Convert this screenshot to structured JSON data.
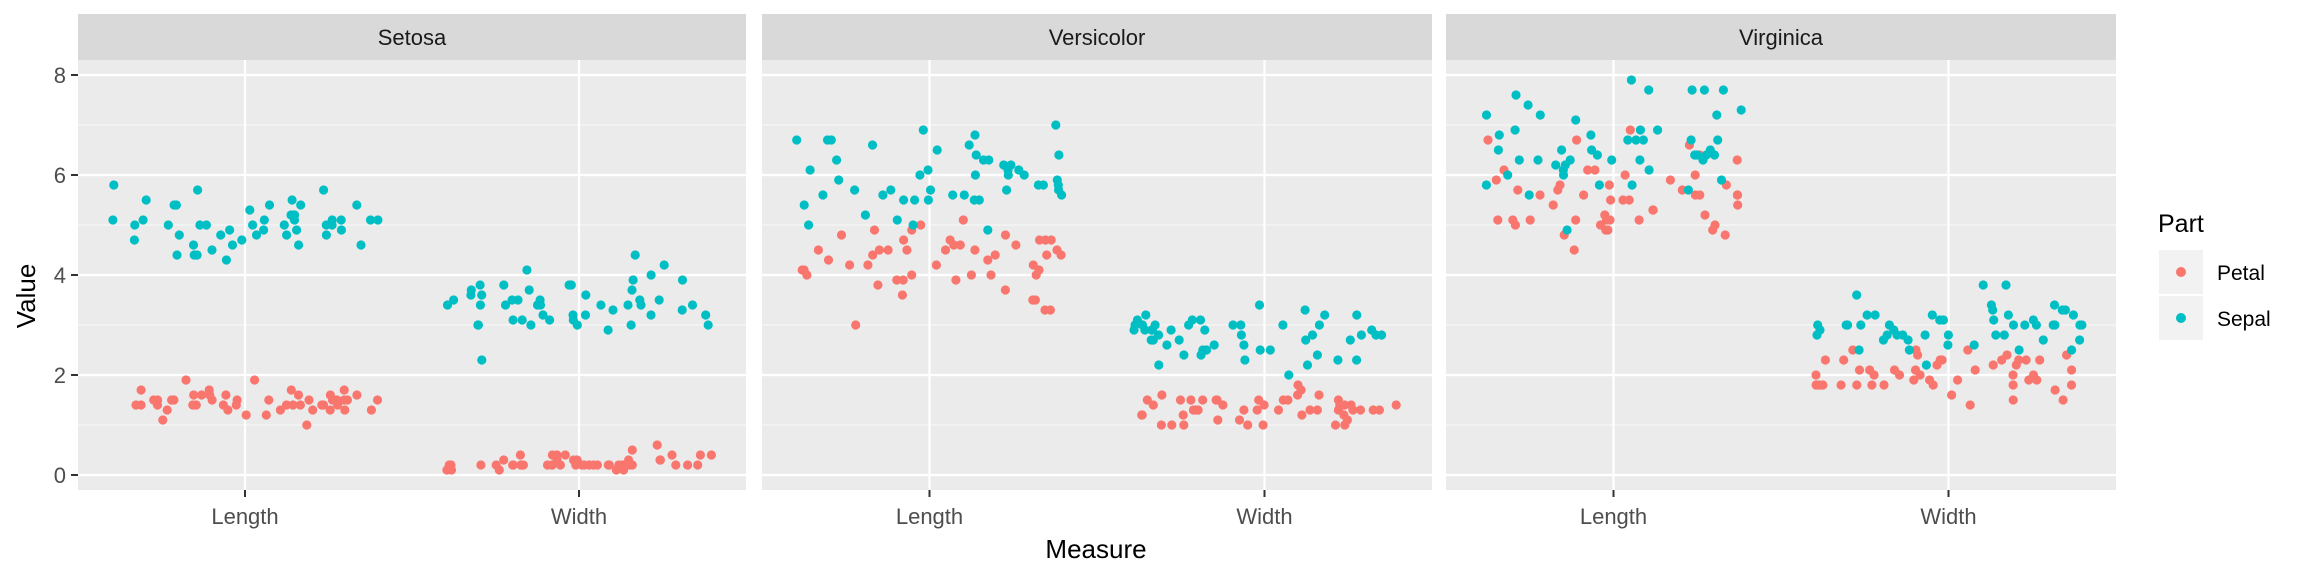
{
  "chart_data": {
    "type": "scatter",
    "facets": [
      "Setosa",
      "Versicolor",
      "Virginica"
    ],
    "categories": [
      "Length",
      "Width"
    ],
    "xlabel": "Measure",
    "ylabel": "Value",
    "ylim": [
      -0.3,
      8.3
    ],
    "yticks": [
      0,
      2,
      4,
      6,
      8
    ],
    "jitter": "horizontal",
    "grid": true,
    "legend": {
      "title": "Part",
      "position": "right",
      "entries": [
        {
          "name": "Petal",
          "color": "#F8766D"
        },
        {
          "name": "Sepal",
          "color": "#00BFC4"
        }
      ]
    },
    "series": [
      {
        "name": "Petal",
        "color": "#F8766D",
        "points": {
          "Setosa": {
            "Length": [
              1.4,
              1.4,
              1.3,
              1.5,
              1.4,
              1.7,
              1.4,
              1.5,
              1.4,
              1.5,
              1.5,
              1.6,
              1.4,
              1.1,
              1.2,
              1.5,
              1.3,
              1.4,
              1.7,
              1.5,
              1.7,
              1.5,
              1.0,
              1.7,
              1.9,
              1.6,
              1.6,
              1.5,
              1.4,
              1.6,
              1.6,
              1.5,
              1.5,
              1.4,
              1.5,
              1.2,
              1.3,
              1.4,
              1.3,
              1.5,
              1.3,
              1.3,
              1.3,
              1.6,
              1.9,
              1.4,
              1.6,
              1.4,
              1.5,
              1.4
            ],
            "Width": [
              0.2,
              0.2,
              0.2,
              0.2,
              0.2,
              0.4,
              0.3,
              0.2,
              0.2,
              0.1,
              0.2,
              0.2,
              0.1,
              0.1,
              0.2,
              0.4,
              0.4,
              0.3,
              0.3,
              0.3,
              0.2,
              0.4,
              0.2,
              0.5,
              0.2,
              0.2,
              0.4,
              0.2,
              0.2,
              0.2,
              0.2,
              0.4,
              0.1,
              0.2,
              0.2,
              0.2,
              0.2,
              0.1,
              0.2,
              0.2,
              0.3,
              0.3,
              0.2,
              0.6,
              0.4,
              0.3,
              0.2,
              0.2,
              0.2,
              0.2
            ]
          },
          "Versicolor": {
            "Length": [
              4.7,
              4.5,
              4.9,
              4.0,
              4.6,
              4.5,
              4.7,
              3.3,
              4.6,
              3.9,
              3.5,
              4.2,
              4.0,
              4.7,
              3.6,
              4.4,
              4.5,
              4.1,
              4.5,
              3.9,
              4.8,
              4.0,
              4.9,
              4.7,
              4.3,
              4.4,
              4.8,
              5.0,
              4.5,
              3.5,
              3.8,
              3.7,
              3.9,
              5.1,
              4.5,
              4.5,
              4.7,
              4.4,
              4.1,
              4.0,
              4.4,
              4.6,
              4.0,
              3.3,
              4.2,
              4.2,
              4.2,
              4.3,
              3.0,
              4.1
            ],
            "Width": [
              1.4,
              1.5,
              1.5,
              1.3,
              1.5,
              1.3,
              1.6,
              1.0,
              1.3,
              1.4,
              1.0,
              1.5,
              1.0,
              1.4,
              1.3,
              1.4,
              1.5,
              1.0,
              1.5,
              1.1,
              1.8,
              1.3,
              1.5,
              1.2,
              1.3,
              1.4,
              1.4,
              1.7,
              1.5,
              1.0,
              1.1,
              1.0,
              1.2,
              1.6,
              1.5,
              1.6,
              1.5,
              1.3,
              1.3,
              1.3,
              1.2,
              1.4,
              1.2,
              1.0,
              1.3,
              1.2,
              1.3,
              1.3,
              1.1,
              1.3
            ]
          },
          "Virginica": {
            "Length": [
              6.0,
              5.1,
              5.9,
              5.6,
              5.8,
              6.6,
              4.5,
              6.3,
              5.8,
              6.1,
              5.1,
              5.3,
              5.5,
              5.0,
              5.1,
              5.3,
              5.5,
              6.7,
              6.9,
              5.0,
              5.7,
              4.9,
              6.7,
              4.9,
              5.7,
              6.0,
              4.8,
              4.9,
              5.6,
              5.8,
              6.1,
              6.4,
              5.6,
              5.1,
              5.6,
              6.1,
              5.6,
              5.5,
              4.8,
              5.4,
              5.6,
              5.1,
              5.1,
              5.9,
              5.7,
              5.2,
              5.0,
              5.2,
              5.4,
              5.1
            ],
            "Width": [
              2.5,
              1.9,
              2.1,
              1.8,
              2.2,
              2.1,
              1.7,
              1.8,
              1.8,
              2.5,
              2.0,
              1.9,
              2.1,
              2.0,
              2.4,
              2.3,
              1.8,
              2.2,
              2.3,
              1.5,
              2.3,
              2.0,
              2.0,
              1.8,
              2.1,
              1.8,
              1.8,
              1.8,
              2.1,
              1.6,
              1.9,
              2.0,
              2.2,
              1.5,
              1.4,
              2.3,
              2.4,
              1.8,
              1.8,
              2.1,
              2.4,
              2.3,
              1.9,
              2.3,
              2.5,
              2.3,
              1.9,
              2.0,
              2.3,
              1.8
            ]
          }
        }
      },
      {
        "name": "Sepal",
        "color": "#00BFC4",
        "points": {
          "Setosa": {
            "Length": [
              5.1,
              4.9,
              4.7,
              4.6,
              5.0,
              5.4,
              4.6,
              5.0,
              4.4,
              4.9,
              5.4,
              4.8,
              4.8,
              4.3,
              5.8,
              5.7,
              5.4,
              5.1,
              5.7,
              5.1,
              5.4,
              5.1,
              4.6,
              5.1,
              4.8,
              5.0,
              5.0,
              5.2,
              5.2,
              4.7,
              4.8,
              5.4,
              5.2,
              5.5,
              4.9,
              5.0,
              5.5,
              4.9,
              4.4,
              5.1,
              5.0,
              4.5,
              4.4,
              5.0,
              5.1,
              4.8,
              5.1,
              4.6,
              5.3,
              5.0
            ],
            "Width": [
              3.5,
              3.0,
              3.2,
              3.1,
              3.6,
              3.9,
              3.4,
              3.4,
              2.9,
              3.1,
              3.7,
              3.4,
              3.0,
              3.0,
              4.0,
              4.4,
              3.9,
              3.5,
              3.8,
              3.8,
              3.4,
              3.7,
              3.6,
              3.3,
              3.4,
              3.0,
              3.4,
              3.5,
              3.4,
              3.2,
              3.1,
              3.4,
              4.1,
              4.2,
              3.1,
              3.2,
              3.5,
              3.6,
              3.0,
              3.4,
              3.5,
              2.3,
              3.2,
              3.5,
              3.8,
              3.0,
              3.8,
              3.2,
              3.7,
              3.3
            ]
          },
          "Versicolor": {
            "Length": [
              7.0,
              6.4,
              6.9,
              5.5,
              6.5,
              5.7,
              6.3,
              4.9,
              6.6,
              5.2,
              5.0,
              5.9,
              6.0,
              6.1,
              5.6,
              6.7,
              5.6,
              5.8,
              6.2,
              5.6,
              5.9,
              6.1,
              6.3,
              6.1,
              6.4,
              6.6,
              6.8,
              6.7,
              6.0,
              5.7,
              5.5,
              5.5,
              5.8,
              6.0,
              5.4,
              6.0,
              6.7,
              6.3,
              5.6,
              5.5,
              5.5,
              6.1,
              5.8,
              5.0,
              5.6,
              5.7,
              5.7,
              6.2,
              5.1,
              5.7
            ],
            "Width": [
              3.2,
              3.2,
              3.1,
              2.3,
              2.8,
              2.8,
              3.3,
              2.4,
              2.9,
              2.7,
              2.0,
              3.0,
              2.2,
              2.9,
              2.9,
              3.1,
              3.0,
              2.7,
              2.2,
              2.5,
              3.2,
              2.8,
              2.5,
              2.8,
              2.9,
              3.0,
              2.8,
              3.0,
              2.9,
              2.6,
              2.4,
              2.4,
              2.7,
              2.7,
              3.0,
              3.4,
              3.1,
              2.3,
              3.0,
              2.5,
              2.6,
              3.0,
              2.6,
              2.3,
              2.7,
              3.0,
              2.9,
              2.9,
              2.5,
              2.8
            ]
          },
          "Virginica": {
            "Length": [
              6.3,
              5.8,
              7.1,
              6.3,
              6.5,
              7.6,
              4.9,
              7.3,
              6.7,
              7.2,
              6.5,
              6.4,
              6.8,
              5.7,
              5.8,
              6.4,
              6.5,
              7.7,
              7.7,
              6.0,
              6.9,
              5.6,
              7.7,
              6.3,
              6.7,
              7.2,
              6.2,
              6.1,
              6.4,
              7.2,
              7.4,
              7.9,
              6.4,
              6.3,
              6.1,
              7.7,
              6.3,
              6.4,
              6.0,
              6.9,
              6.7,
              6.9,
              5.8,
              6.8,
              6.7,
              6.7,
              6.3,
              6.5,
              6.2,
              5.9
            ],
            "Width": [
              3.3,
              2.7,
              3.0,
              2.9,
              3.0,
              3.0,
              2.5,
              2.9,
              2.5,
              3.6,
              3.2,
              2.7,
              3.0,
              2.5,
              2.8,
              3.2,
              3.0,
              3.8,
              2.6,
              2.2,
              3.2,
              2.8,
              2.8,
              2.7,
              3.3,
              3.2,
              2.8,
              3.0,
              2.8,
              3.0,
              2.8,
              3.8,
              2.8,
              2.8,
              2.6,
              3.0,
              3.4,
              3.1,
              3.0,
              3.1,
              3.1,
              3.1,
              2.7,
              3.2,
              3.3,
              3.0,
              2.5,
              3.0,
              3.4,
              3.0
            ]
          }
        }
      }
    ]
  }
}
